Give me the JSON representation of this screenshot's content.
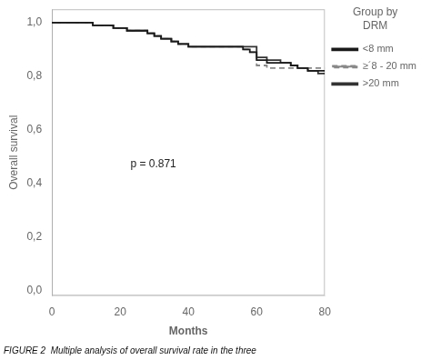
{
  "chart_data": {
    "type": "step",
    "subtitle": "FIGURE 2  Multiple analysis of overall survival rate in the three",
    "xlabel": "Months",
    "ylabel": "Overall survival",
    "legend_title": "Group by\nDRM",
    "legend": "right",
    "grid": false,
    "xlim": [
      0,
      80
    ],
    "ylim": [
      -0.02,
      1.05
    ],
    "xticks": [
      0,
      20,
      40,
      60,
      80
    ],
    "yticks": [
      {
        "value": 0.0,
        "label": "0,0"
      },
      {
        "value": 0.2,
        "label": "0,2"
      },
      {
        "value": 0.4,
        "label": "0,4"
      },
      {
        "value": 0.6,
        "label": "0,6"
      },
      {
        "value": 0.8,
        "label": "0,8"
      },
      {
        "value": 1.0,
        "label": "1,0"
      }
    ],
    "annotations": [
      {
        "text": "p = 0.871",
        "x": 23,
        "y": 0.46
      }
    ],
    "x": [
      0,
      7,
      12,
      18,
      22,
      25,
      28,
      30,
      32,
      35,
      37,
      40,
      43,
      47,
      50,
      53,
      56,
      58,
      60,
      63,
      67,
      70,
      72,
      75,
      78,
      80
    ],
    "series": [
      {
        "name": "<8 mm",
        "color": "#1a1a1a",
        "line_style": "solid",
        "values": [
          1.0,
          1.0,
          0.99,
          0.98,
          0.97,
          0.97,
          0.96,
          0.95,
          0.94,
          0.93,
          0.92,
          0.91,
          0.91,
          0.91,
          0.91,
          0.91,
          0.9,
          0.89,
          0.86,
          0.85,
          0.85,
          0.84,
          0.83,
          0.82,
          0.82,
          0.82
        ]
      },
      {
        "name": "≥´8 - 20 mm",
        "color": "#888888",
        "line_style": "dashed",
        "values": [
          1.0,
          1.0,
          0.99,
          0.98,
          0.97,
          0.97,
          0.96,
          0.95,
          0.94,
          0.93,
          0.92,
          0.91,
          0.91,
          0.91,
          0.91,
          0.91,
          0.9,
          0.89,
          0.84,
          0.83,
          0.83,
          0.83,
          0.83,
          0.83,
          0.83,
          0.83
        ]
      },
      {
        "name": ">20 mm",
        "color": "#333333",
        "line_style": "solid",
        "values": [
          1.0,
          1.0,
          0.99,
          0.98,
          0.97,
          0.97,
          0.96,
          0.95,
          0.94,
          0.93,
          0.92,
          0.91,
          0.91,
          0.91,
          0.91,
          0.91,
          0.91,
          0.91,
          0.87,
          0.86,
          0.85,
          0.84,
          0.83,
          0.82,
          0.81,
          0.81
        ]
      }
    ]
  }
}
